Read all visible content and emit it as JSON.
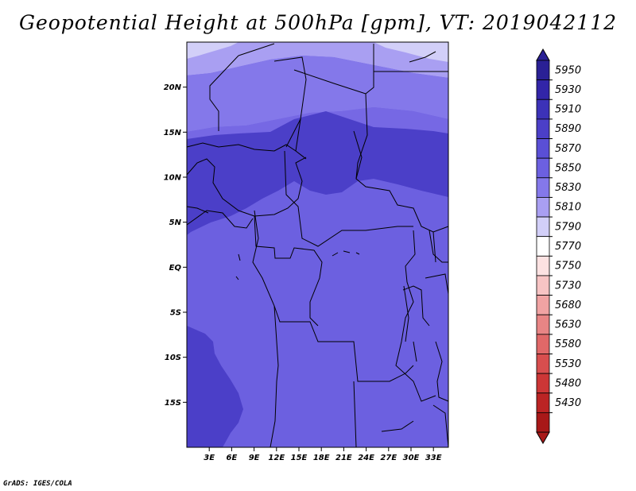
{
  "title": "Geopotential Height at 500hPa [gpm], VT: 2019042112",
  "credit": "GrADS: IGES/COLA",
  "map": {
    "lon_range": [
      0,
      35
    ],
    "lat_range": [
      -20,
      25
    ],
    "lat_ticks": [
      {
        "value": 20,
        "label": "20N"
      },
      {
        "value": 15,
        "label": "15N"
      },
      {
        "value": 10,
        "label": "10N"
      },
      {
        "value": 5,
        "label": "5N"
      },
      {
        "value": 0,
        "label": "EQ"
      },
      {
        "value": -5,
        "label": "5S"
      },
      {
        "value": -10,
        "label": "10S"
      },
      {
        "value": -15,
        "label": "15S"
      }
    ],
    "lon_ticks": [
      {
        "value": 3,
        "label": "3E"
      },
      {
        "value": 6,
        "label": "6E"
      },
      {
        "value": 9,
        "label": "9E"
      },
      {
        "value": 12,
        "label": "12E"
      },
      {
        "value": 15,
        "label": "15E"
      },
      {
        "value": 18,
        "label": "18E"
      },
      {
        "value": 21,
        "label": "21E"
      },
      {
        "value": 24,
        "label": "24E"
      },
      {
        "value": 27,
        "label": "27E"
      },
      {
        "value": 30,
        "label": "30E"
      },
      {
        "value": 33,
        "label": "33E"
      }
    ]
  },
  "colorbar": {
    "levels": [
      {
        "label": "5950",
        "color": "#2a2095"
      },
      {
        "label": "5930",
        "color": "#3225a8"
      },
      {
        "label": "5910",
        "color": "#3c32b8"
      },
      {
        "label": "5890",
        "color": "#4b3fc8"
      },
      {
        "label": "5870",
        "color": "#5a4fd6"
      },
      {
        "label": "5850",
        "color": "#6c60e0"
      },
      {
        "label": "5830",
        "color": "#8478ea"
      },
      {
        "label": "5810",
        "color": "#a99ff2"
      },
      {
        "label": "5790",
        "color": "#d2cff8"
      },
      {
        "label": "5770",
        "color": "#ffffff"
      },
      {
        "label": "5750",
        "color": "#fce2e2"
      },
      {
        "label": "5730",
        "color": "#f7c4c4"
      },
      {
        "label": "5680",
        "color": "#f0a3a3"
      },
      {
        "label": "5630",
        "color": "#e88585"
      },
      {
        "label": "5580",
        "color": "#e06868"
      },
      {
        "label": "5530",
        "color": "#d84e4e"
      },
      {
        "label": "5480",
        "color": "#cc3636"
      },
      {
        "label": "5430",
        "color": "#bb2424"
      }
    ],
    "bottom_color": "#a81818"
  }
}
